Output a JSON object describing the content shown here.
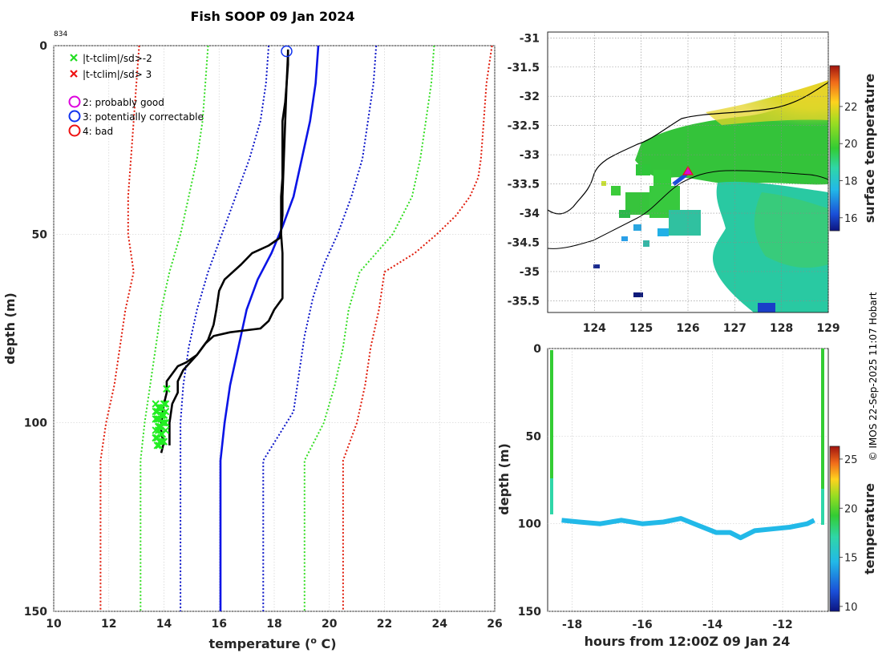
{
  "figure": {
    "title": "Fish SOOP 09 Jan 2024",
    "profile_id": "834",
    "credit": "© IMOS 22-Sep-2025 11:07 Hobart"
  },
  "legend": {
    "flags": [
      {
        "label": "|t-tclim|/sd>-2",
        "color": "#22dd22",
        "marker": "x"
      },
      {
        "label": "|t-tclim|/sd> 3",
        "color": "#ee1111",
        "marker": "x"
      },
      {
        "label": "2: probably good",
        "color": "#dd00dd",
        "marker": "o"
      },
      {
        "label": "3: potentially correctable",
        "color": "#1133ee",
        "marker": "o"
      },
      {
        "label": "4: bad",
        "color": "#ee1111",
        "marker": "o"
      }
    ]
  },
  "colors": {
    "profile": "#000000",
    "clim_mean": "#0a14e6",
    "clim_2sd_blue": "#0a14c8",
    "clim_green": "#33dd22",
    "clim_red": "#e01b0a",
    "flag_green": "#22ee22"
  },
  "chart_data": [
    {
      "id": "profile",
      "type": "line",
      "xlabel": "temperature (o C)",
      "xlabel_prefix": "temperature (",
      "xlabel_sup": "o",
      "xlabel_suffix": " C)",
      "ylabel": "depth (m)",
      "xlim": [
        10,
        26
      ],
      "ylim": [
        150,
        0
      ],
      "xticks": [
        10,
        12,
        14,
        16,
        18,
        20,
        22,
        24,
        26
      ],
      "yticks": [
        0,
        50,
        100,
        150
      ],
      "grid": true,
      "series": [
        {
          "name": "climatology mean",
          "style": "solid",
          "color": "#0a14e6",
          "points": [
            [
              19.6,
              0
            ],
            [
              19.5,
              10
            ],
            [
              19.3,
              20
            ],
            [
              19.0,
              30
            ],
            [
              18.7,
              40
            ],
            [
              18.3,
              48
            ],
            [
              17.9,
              55
            ],
            [
              17.4,
              62
            ],
            [
              17.0,
              70
            ],
            [
              16.7,
              80
            ],
            [
              16.4,
              90
            ],
            [
              16.2,
              100
            ],
            [
              16.05,
              110
            ],
            [
              16.05,
              150
            ]
          ]
        },
        {
          "name": "mean - 1sd",
          "style": "dotted",
          "color": "#0a14c8",
          "points": [
            [
              17.8,
              0
            ],
            [
              17.7,
              10
            ],
            [
              17.5,
              20
            ],
            [
              17.1,
              30
            ],
            [
              16.6,
              40
            ],
            [
              16.1,
              50
            ],
            [
              15.6,
              60
            ],
            [
              15.2,
              70
            ],
            [
              14.9,
              80
            ],
            [
              14.7,
              90
            ],
            [
              14.6,
              100
            ],
            [
              14.6,
              110
            ],
            [
              14.6,
              150
            ]
          ]
        },
        {
          "name": "mean + 1sd",
          "style": "dotted",
          "color": "#0a14c8",
          "points": [
            [
              21.7,
              0
            ],
            [
              21.6,
              10
            ],
            [
              21.4,
              20
            ],
            [
              21.2,
              30
            ],
            [
              20.8,
              40
            ],
            [
              20.3,
              50
            ],
            [
              19.8,
              58
            ],
            [
              19.4,
              67
            ],
            [
              19.1,
              77
            ],
            [
              18.9,
              87
            ],
            [
              18.7,
              97
            ],
            [
              17.6,
              110
            ],
            [
              17.6,
              150
            ]
          ]
        },
        {
          "name": "mean - 2sd",
          "style": "dotted",
          "color": "#33dd22",
          "points": [
            [
              15.6,
              0
            ],
            [
              15.5,
              10
            ],
            [
              15.4,
              20
            ],
            [
              15.2,
              30
            ],
            [
              14.9,
              40
            ],
            [
              14.6,
              50
            ],
            [
              14.2,
              60
            ],
            [
              13.9,
              70
            ],
            [
              13.7,
              80
            ],
            [
              13.5,
              90
            ],
            [
              13.3,
              100
            ],
            [
              13.15,
              110
            ],
            [
              13.15,
              150
            ]
          ]
        },
        {
          "name": "mean + 2sd",
          "style": "dotted",
          "color": "#33dd22",
          "points": [
            [
              23.8,
              0
            ],
            [
              23.7,
              10
            ],
            [
              23.5,
              20
            ],
            [
              23.3,
              30
            ],
            [
              23.0,
              40
            ],
            [
              22.3,
              50
            ],
            [
              21.1,
              60
            ],
            [
              20.7,
              70
            ],
            [
              20.5,
              80
            ],
            [
              20.2,
              90
            ],
            [
              19.8,
              100
            ],
            [
              19.1,
              110
            ],
            [
              19.1,
              150
            ]
          ]
        },
        {
          "name": "mean - 3sd",
          "style": "dotted",
          "color": "#e01b0a",
          "points": [
            [
              13.1,
              0
            ],
            [
              13.0,
              10
            ],
            [
              12.9,
              20
            ],
            [
              12.8,
              30
            ],
            [
              12.7,
              40
            ],
            [
              12.7,
              50
            ],
            [
              12.9,
              60
            ],
            [
              12.6,
              70
            ],
            [
              12.4,
              80
            ],
            [
              12.2,
              90
            ],
            [
              11.9,
              100
            ],
            [
              11.7,
              110
            ],
            [
              11.7,
              150
            ]
          ]
        },
        {
          "name": "mean + 3sd",
          "style": "dotted",
          "color": "#e01b0a",
          "points": [
            [
              25.9,
              0
            ],
            [
              25.8,
              5
            ],
            [
              25.7,
              10
            ],
            [
              25.6,
              20
            ],
            [
              25.5,
              30
            ],
            [
              25.4,
              35
            ],
            [
              25.1,
              40
            ],
            [
              24.6,
              45
            ],
            [
              23.9,
              50
            ],
            [
              23.1,
              55
            ],
            [
              22.0,
              60
            ],
            [
              21.8,
              70
            ],
            [
              21.5,
              80
            ],
            [
              21.3,
              90
            ],
            [
              21.0,
              100
            ],
            [
              20.5,
              110
            ],
            [
              20.5,
              150
            ]
          ]
        },
        {
          "name": "observed profile (down)",
          "style": "solid",
          "color": "#000000",
          "points": [
            [
              18.5,
              1
            ],
            [
              18.5,
              5
            ],
            [
              18.45,
              10
            ],
            [
              18.4,
              15
            ],
            [
              18.3,
              20
            ],
            [
              18.3,
              25
            ],
            [
              18.3,
              30
            ],
            [
              18.3,
              35
            ],
            [
              18.25,
              40
            ],
            [
              18.25,
              45
            ],
            [
              18.25,
              50
            ],
            [
              18.3,
              55
            ],
            [
              18.3,
              60
            ],
            [
              18.3,
              67
            ],
            [
              18.0,
              70
            ],
            [
              17.8,
              73
            ],
            [
              17.5,
              75
            ],
            [
              16.4,
              76
            ],
            [
              15.8,
              77
            ],
            [
              15.5,
              79
            ],
            [
              15.2,
              82
            ],
            [
              14.8,
              84
            ],
            [
              14.5,
              85
            ],
            [
              14.3,
              87
            ],
            [
              14.1,
              89
            ],
            [
              14.1,
              92
            ],
            [
              14.0,
              95
            ],
            [
              13.9,
              100
            ],
            [
              13.9,
              103
            ],
            [
              14.0,
              105
            ],
            [
              13.9,
              108
            ]
          ]
        },
        {
          "name": "observed profile (up)",
          "style": "solid",
          "color": "#000000",
          "points": [
            [
              14.2,
              106
            ],
            [
              14.2,
              100
            ],
            [
              14.3,
              95
            ],
            [
              14.5,
              92
            ],
            [
              14.5,
              89
            ],
            [
              14.7,
              86
            ],
            [
              15.2,
              82
            ],
            [
              15.6,
              78
            ],
            [
              15.8,
              74
            ],
            [
              15.9,
              70
            ],
            [
              16.0,
              65
            ],
            [
              16.2,
              62
            ],
            [
              16.8,
              58
            ],
            [
              17.2,
              55
            ],
            [
              17.8,
              53
            ],
            [
              18.2,
              51
            ],
            [
              18.25,
              49
            ],
            [
              18.3,
              45
            ],
            [
              18.3,
              40
            ],
            [
              18.35,
              30
            ],
            [
              18.4,
              20
            ],
            [
              18.45,
              10
            ],
            [
              18.5,
              2
            ]
          ]
        }
      ],
      "markers": {
        "flag_2sd_green_x": [
          [
            14.1,
            91
          ],
          [
            13.8,
            96
          ],
          [
            13.9,
            98
          ],
          [
            13.75,
            99
          ],
          [
            13.8,
            101
          ],
          [
            13.9,
            103
          ],
          [
            13.7,
            104
          ],
          [
            13.85,
            105
          ],
          [
            13.8,
            102
          ]
        ],
        "qc_circle_blue": [
          [
            18.45,
            1.5
          ]
        ]
      }
    },
    {
      "id": "map",
      "type": "heatmap",
      "title": "",
      "xlim": [
        123,
        129
      ],
      "ylim": [
        -35.7,
        -30.9
      ],
      "xticks": [
        124,
        125,
        126,
        127,
        128,
        129
      ],
      "yticks": [
        -31,
        -31.5,
        -32,
        -32.5,
        -33,
        -33.5,
        -34,
        -34.5,
        -35,
        -35.5
      ],
      "xtick_labels": [
        "124",
        "125",
        "126",
        "127",
        "128",
        "129"
      ],
      "ytick_labels": [
        "-31",
        "-31.5",
        "-32",
        "-32.5",
        "-33",
        "-33.5",
        "-34",
        "-34.5",
        "-35",
        "-35.5"
      ],
      "colorbar": {
        "label": "surface temperature",
        "range": [
          15.3,
          24.2
        ],
        "ticks": [
          16,
          18,
          20,
          22
        ],
        "tick_labels": [
          "16",
          "18",
          "20",
          "22"
        ]
      },
      "track_position": {
        "lon": 126.05,
        "lat": -33.3
      }
    },
    {
      "id": "section",
      "type": "scatter",
      "xlabel": "hours from 12:00Z 09 Jan 24",
      "ylabel": "depth (m)",
      "xlim": [
        -18.7,
        -10.7
      ],
      "ylim": [
        150,
        0
      ],
      "xticks": [
        -18,
        -16,
        -14,
        -12
      ],
      "xtick_labels": [
        "-18",
        "-16",
        "-14",
        "-12"
      ],
      "yticks": [
        0,
        50,
        100,
        150
      ],
      "ytick_labels": [
        "0",
        "50",
        "100",
        "150"
      ],
      "colorbar": {
        "label": "temperature",
        "range": [
          9.5,
          26.3
        ],
        "ticks": [
          10,
          15,
          20,
          25
        ],
        "tick_labels": [
          "10",
          "15",
          "20",
          "25"
        ]
      },
      "bottom_track": [
        [
          -18.3,
          98
        ],
        [
          -17.8,
          99
        ],
        [
          -17.2,
          100
        ],
        [
          -16.6,
          98
        ],
        [
          -16.0,
          100
        ],
        [
          -15.4,
          99
        ],
        [
          -14.9,
          97
        ],
        [
          -14.4,
          101
        ],
        [
          -13.9,
          105
        ],
        [
          -13.5,
          105
        ],
        [
          -13.2,
          108
        ],
        [
          -12.8,
          104
        ],
        [
          -12.3,
          103
        ],
        [
          -11.8,
          102
        ],
        [
          -11.3,
          100
        ],
        [
          -11.1,
          98
        ]
      ]
    }
  ]
}
